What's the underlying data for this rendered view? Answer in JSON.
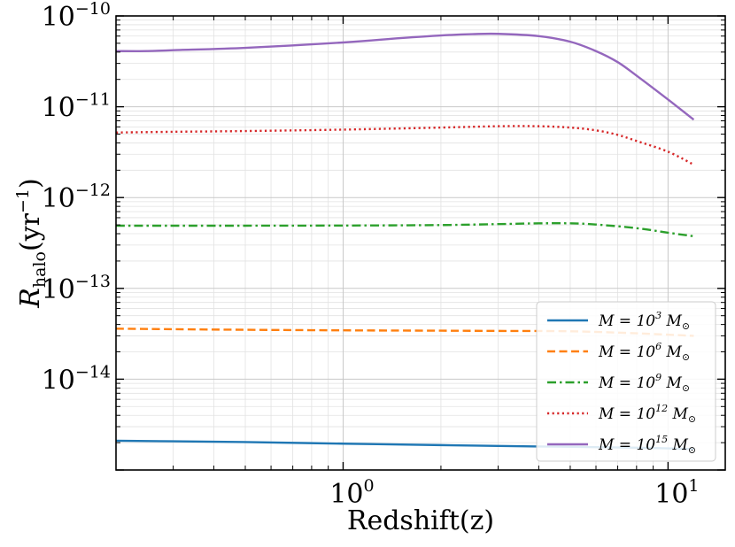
{
  "chart_data": {
    "type": "line",
    "title": "",
    "xlabel": "Redshift(z)",
    "ylabel": {
      "main": "R",
      "sub": "halo",
      "unit_open": "(yr",
      "unit_exp": "−1",
      "unit_close": ")"
    },
    "xscale": "log",
    "yscale": "log",
    "xlim": [
      0.2,
      15
    ],
    "ylim": [
      1e-15,
      1e-10
    ],
    "grid": true,
    "legend_position": "bottom-right",
    "x_ticks": [
      {
        "value": 1,
        "base": "10",
        "exp": "0"
      },
      {
        "value": 10,
        "base": "10",
        "exp": "1"
      }
    ],
    "y_ticks": [
      {
        "value": 1e-10,
        "base": "10",
        "exp": "−10"
      },
      {
        "value": 1e-11,
        "base": "10",
        "exp": "−11"
      },
      {
        "value": 1e-12,
        "base": "10",
        "exp": "−12"
      },
      {
        "value": 1e-13,
        "base": "10",
        "exp": "−13"
      },
      {
        "value": 1e-14,
        "base": "10",
        "exp": "−14"
      }
    ],
    "series": [
      {
        "name": "M = 10^3 M⊙",
        "legend": {
          "lhs": "M = 10",
          "exp": "3",
          "unit": "M",
          "unit_sub": "⊙"
        },
        "color": "#1f77b4",
        "dash": "solid",
        "x": [
          0.2,
          0.3,
          0.5,
          1,
          2,
          3,
          5,
          8,
          12
        ],
        "y": [
          2.1e-15,
          2.07e-15,
          2.03e-15,
          1.95e-15,
          1.88e-15,
          1.84e-15,
          1.8e-15,
          1.76e-15,
          1.7e-15
        ]
      },
      {
        "name": "M = 10^6 M⊙",
        "legend": {
          "lhs": "M = 10",
          "exp": "6",
          "unit": "M",
          "unit_sub": "⊙"
        },
        "color": "#ff7f0e",
        "dash": "dashed",
        "x": [
          0.2,
          0.3,
          0.5,
          1,
          2,
          3,
          5,
          8,
          12
        ],
        "y": [
          3.6e-14,
          3.55e-14,
          3.5e-14,
          3.45e-14,
          3.42e-14,
          3.4e-14,
          3.37e-14,
          3.2e-14,
          3e-14
        ]
      },
      {
        "name": "M = 10^9 M⊙",
        "legend": {
          "lhs": "M = 10",
          "exp": "9",
          "unit": "M",
          "unit_sub": "⊙"
        },
        "color": "#2ca02c",
        "dash": "dashdot",
        "x": [
          0.2,
          0.3,
          0.5,
          1,
          2,
          3,
          4,
          5,
          6,
          8,
          10,
          12
        ],
        "y": [
          4.9e-13,
          4.9e-13,
          4.9e-13,
          4.92e-13,
          4.98e-13,
          5.1e-13,
          5.2e-13,
          5.2e-13,
          5.05e-13,
          4.6e-13,
          4.1e-13,
          3.75e-13
        ]
      },
      {
        "name": "M = 10^12 M⊙",
        "legend": {
          "lhs": "M = 10",
          "exp": "12",
          "unit": "M",
          "unit_sub": "⊙"
        },
        "color": "#d62728",
        "dash": "dotted",
        "x": [
          0.2,
          0.3,
          0.5,
          1,
          2,
          3,
          4,
          5,
          6,
          7,
          8,
          10,
          12
        ],
        "y": [
          5.2e-12,
          5.3e-12,
          5.4e-12,
          5.6e-12,
          5.9e-12,
          6.1e-12,
          6.1e-12,
          5.9e-12,
          5.5e-12,
          4.9e-12,
          4.2e-12,
          3.2e-12,
          2.3e-12
        ]
      },
      {
        "name": "M = 10^15 M⊙",
        "legend": {
          "lhs": "M = 10",
          "exp": "15",
          "unit": "M",
          "unit_sub": "⊙"
        },
        "color": "#9467bd",
        "dash": "solid",
        "x": [
          0.2,
          0.25,
          0.3,
          0.5,
          1,
          1.5,
          2,
          2.5,
          3,
          4,
          5,
          6,
          7,
          8,
          10,
          12
        ],
        "y": [
          4.1e-11,
          4.1e-11,
          4.2e-11,
          4.45e-11,
          5.1e-11,
          5.7e-11,
          6.1e-11,
          6.3e-11,
          6.35e-11,
          6e-11,
          5.2e-11,
          4.1e-11,
          3.1e-11,
          2.2e-11,
          1.2e-11,
          7.2e-12
        ]
      }
    ]
  }
}
